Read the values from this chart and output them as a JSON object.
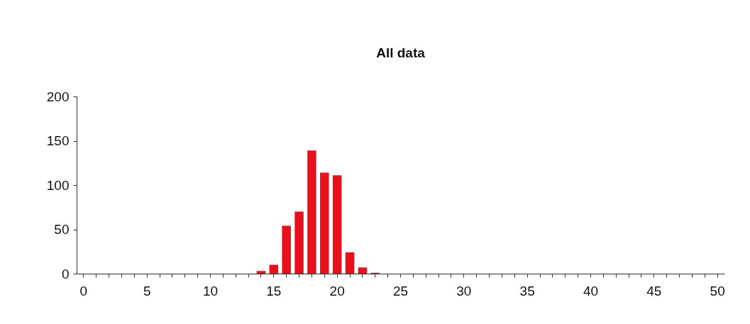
{
  "chart_data": {
    "type": "bar",
    "title": "All data",
    "categories": [
      "0",
      null,
      null,
      null,
      null,
      "5",
      null,
      null,
      null,
      null,
      "10",
      null,
      null,
      null,
      null,
      "15",
      null,
      null,
      null,
      null,
      "20",
      null,
      null,
      null,
      null,
      "25",
      null,
      null,
      null,
      null,
      "30",
      null,
      null,
      null,
      null,
      "35",
      null,
      null,
      null,
      null,
      "40",
      null,
      null,
      null,
      null,
      "45",
      null,
      null,
      null,
      null,
      "50"
    ],
    "values": [
      0,
      0,
      0,
      0,
      0,
      0,
      0,
      0,
      0,
      0,
      0,
      0,
      0,
      0,
      3,
      10,
      54,
      70,
      139,
      114,
      111,
      24,
      7,
      1,
      0,
      0,
      0,
      0,
      0,
      0,
      0,
      0,
      0,
      0,
      0,
      0,
      0,
      0,
      0,
      0,
      0,
      0,
      0,
      0,
      0,
      0,
      0,
      0,
      0,
      0,
      0
    ],
    "color": "#e8101a",
    "ylim": [
      0,
      200
    ],
    "yticks": [
      0,
      50,
      100,
      150,
      200
    ],
    "grid": false
  }
}
